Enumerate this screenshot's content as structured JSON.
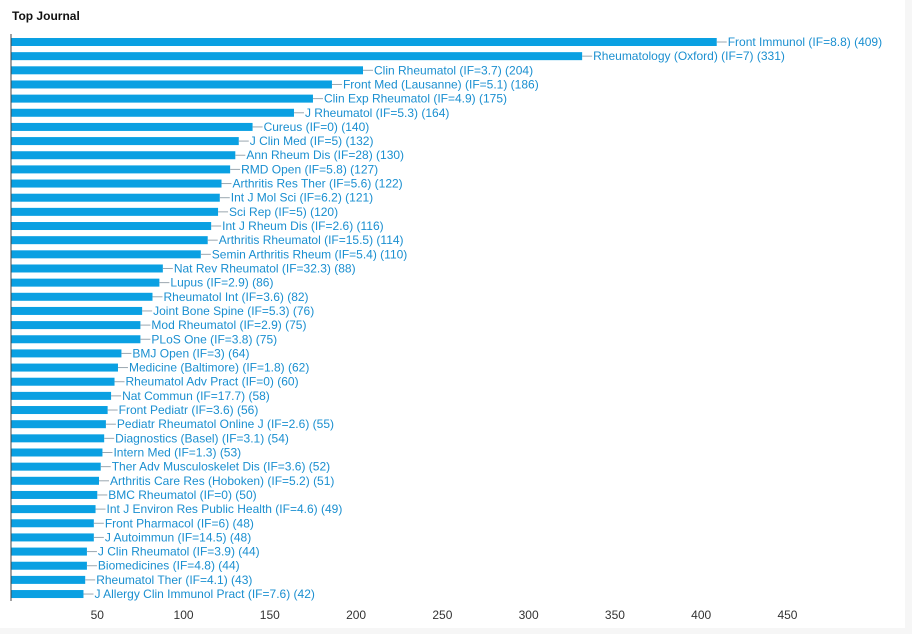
{
  "chart_data": {
    "type": "bar",
    "orientation": "horizontal",
    "title": "Top Journal",
    "xlim": [
      0,
      490
    ],
    "xticks": [
      50,
      100,
      150,
      200,
      250,
      300,
      350,
      400,
      450
    ],
    "grid": false,
    "bar_color": "#0aa0e2",
    "label_color": "#1a8fd0",
    "categories": [
      "Front Immunol (IF=8.8)",
      "Rheumatology (Oxford) (IF=7)",
      "Clin Rheumatol (IF=3.7)",
      "Front Med (Lausanne) (IF=5.1)",
      "Clin Exp Rheumatol (IF=4.9)",
      "J Rheumatol (IF=5.3)",
      "Cureus (IF=0)",
      "J Clin Med (IF=5)",
      "Ann Rheum Dis (IF=28)",
      "RMD Open (IF=5.8)",
      "Arthritis Res Ther (IF=5.6)",
      "Int J Mol Sci (IF=6.2)",
      "Sci Rep (IF=5)",
      "Int J Rheum Dis (IF=2.6)",
      "Arthritis Rheumatol (IF=15.5)",
      "Semin Arthritis Rheum (IF=5.4)",
      "Nat Rev Rheumatol (IF=32.3)",
      "Lupus (IF=2.9)",
      "Rheumatol Int (IF=3.6)",
      "Joint Bone Spine (IF=5.3)",
      "Mod Rheumatol (IF=2.9)",
      "PLoS One (IF=3.8)",
      "BMJ Open (IF=3)",
      "Medicine (Baltimore) (IF=1.8)",
      "Rheumatol Adv Pract (IF=0)",
      "Nat Commun (IF=17.7)",
      "Front Pediatr (IF=3.6)",
      "Pediatr Rheumatol Online J (IF=2.6)",
      "Diagnostics (Basel) (IF=3.1)",
      "Intern Med (IF=1.3)",
      "Ther Adv Musculoskelet Dis (IF=3.6)",
      "Arthritis Care Res (Hoboken) (IF=5.2)",
      "BMC Rheumatol (IF=0)",
      "Int J Environ Res Public Health (IF=4.6)",
      "Front Pharmacol (IF=6)",
      "J Autoimmun (IF=14.5)",
      "J Clin Rheumatol (IF=3.9)",
      "Biomedicines (IF=4.8)",
      "Rheumatol Ther (IF=4.1)",
      "J Allergy Clin Immunol Pract (IF=7.6)"
    ],
    "values": [
      409,
      331,
      204,
      186,
      175,
      164,
      140,
      132,
      130,
      127,
      122,
      121,
      120,
      116,
      114,
      110,
      88,
      86,
      82,
      76,
      75,
      75,
      64,
      62,
      60,
      58,
      56,
      55,
      54,
      53,
      52,
      51,
      50,
      49,
      48,
      48,
      44,
      44,
      43,
      42
    ]
  }
}
